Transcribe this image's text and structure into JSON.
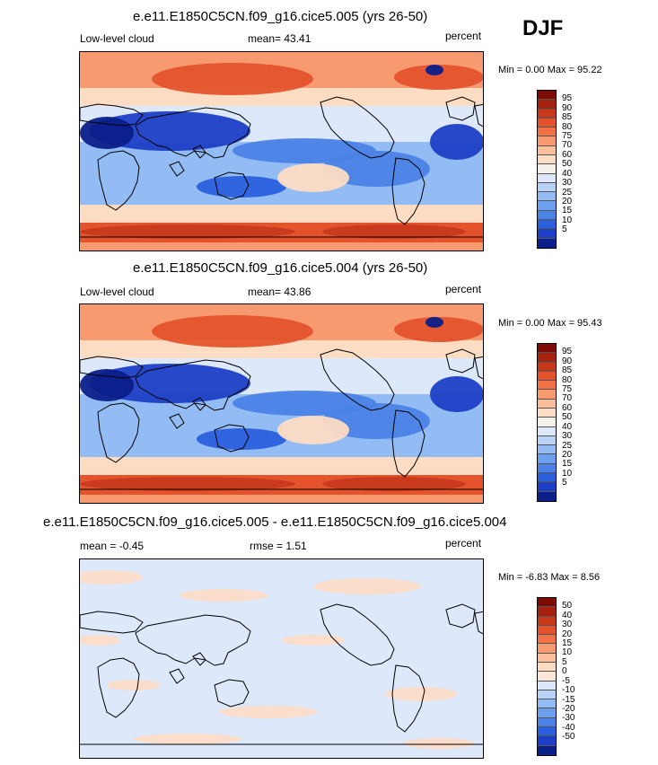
{
  "season": "DJF",
  "colors": {
    "main_scale": [
      "#0b1f8a",
      "#1c3fc6",
      "#2a60dd",
      "#4a82e6",
      "#6c9fee",
      "#93bbf4",
      "#b9d3f8",
      "#dde8fb",
      "#f5f1ea",
      "#fddcc4",
      "#fbbf9c",
      "#f89a70",
      "#f27246",
      "#e4532c",
      "#c8391c",
      "#a6220f",
      "#7d0d04"
    ],
    "diff_scale": [
      "#0b1f8a",
      "#1c3fc6",
      "#2a60dd",
      "#4a82e6",
      "#6c9fee",
      "#93bbf4",
      "#b9d3f8",
      "#dde8fb",
      "#fde8d8",
      "#fddcc4",
      "#fbbf9c",
      "#f89a70",
      "#f27246",
      "#e4532c",
      "#c8391c",
      "#a6220f",
      "#7d0d04"
    ],
    "land": "#000000"
  },
  "panels": [
    {
      "title": "e.e11.E1850C5CN.f09_g16.cice5.005 (yrs 26-50)",
      "left_label": "Low-level cloud",
      "center_label": "mean=  43.41",
      "right_label": "percent",
      "minmax": "Min =   0.00 Max =  95.22"
    },
    {
      "title": "e.e11.E1850C5CN.f09_g16.cice5.004 (yrs 26-50)",
      "left_label": "Low-level cloud",
      "center_label": "mean=  43.86",
      "right_label": "percent",
      "minmax": "Min =   0.00 Max =  95.43"
    },
    {
      "title": "e.e11.E1850C5CN.f09_g16.cice5.005 - e.e11.E1850C5CN.f09_g16.cice5.004",
      "left_label": "mean =  -0.45",
      "center_label": "rmse =   1.51",
      "right_label": "percent",
      "minmax": "Min =  -6.83 Max =   8.56"
    }
  ],
  "chart_data": [
    {
      "type": "heatmap",
      "title": "e.e11.E1850C5CN.f09_g16.cice5.005 (yrs 26-50)",
      "variable": "Low-level cloud",
      "units": "percent",
      "mean": 43.41,
      "min": 0.0,
      "max": 95.22,
      "colorbar_levels": [
        "95",
        "90",
        "85",
        "80",
        "75",
        "70",
        "60",
        "50",
        "40",
        "30",
        "25",
        "20",
        "15",
        "10",
        "5"
      ]
    },
    {
      "type": "heatmap",
      "title": "e.e11.E1850C5CN.f09_g16.cice5.004 (yrs 26-50)",
      "variable": "Low-level cloud",
      "units": "percent",
      "mean": 43.86,
      "min": 0.0,
      "max": 95.43,
      "colorbar_levels": [
        "95",
        "90",
        "85",
        "80",
        "75",
        "70",
        "60",
        "50",
        "40",
        "30",
        "25",
        "20",
        "15",
        "10",
        "5"
      ]
    },
    {
      "type": "heatmap",
      "title": "e.e11.E1850C5CN.f09_g16.cice5.005 - e.e11.E1850C5CN.f09_g16.cice5.004",
      "units": "percent",
      "mean": -0.45,
      "rmse": 1.51,
      "min": -6.83,
      "max": 8.56,
      "colorbar_levels": [
        "50",
        "40",
        "30",
        "20",
        "15",
        "10",
        "5",
        "0",
        "-5",
        "-10",
        "-15",
        "-20",
        "-30",
        "-40",
        "-50"
      ]
    }
  ]
}
